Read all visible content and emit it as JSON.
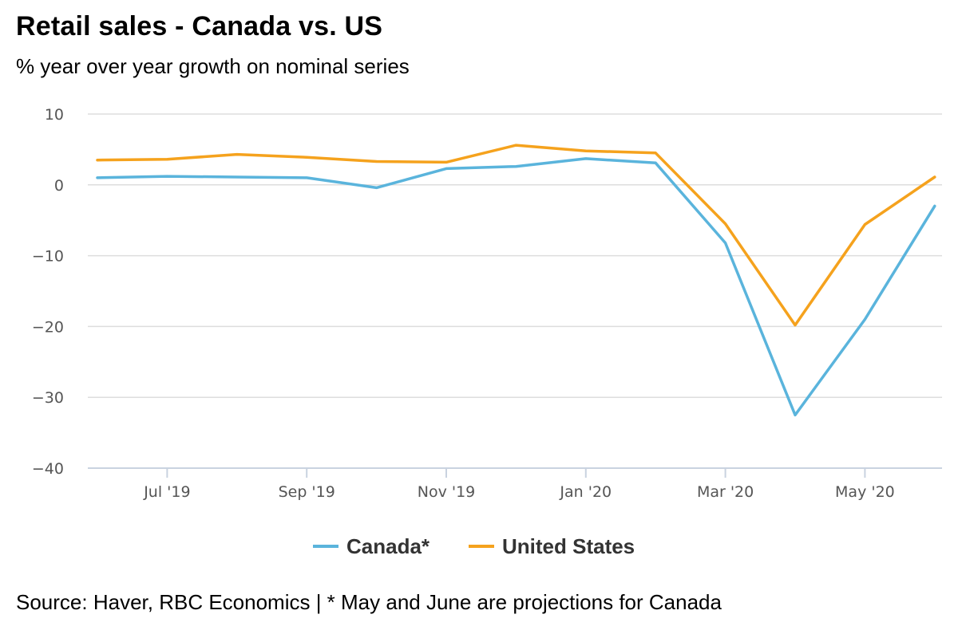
{
  "header": {
    "title": "Retail sales - Canada vs. US",
    "subtitle": "% year over year growth on nominal series"
  },
  "footer": {
    "source": "Source: Haver, RBC Economics | * May and June are projections for Canada"
  },
  "colors": {
    "canada": "#5ab4dc",
    "us": "#f5a21d",
    "grid": "#dddddd",
    "axis": "#c9d3e0"
  },
  "chart_data": {
    "type": "line",
    "title": "Retail sales - Canada vs. US",
    "subtitle": "% year over year growth on nominal series",
    "xlabel": "",
    "ylabel": "",
    "x": [
      "Jun '19",
      "Jul '19",
      "Aug '19",
      "Sep '19",
      "Oct '19",
      "Nov '19",
      "Dec '19",
      "Jan '20",
      "Feb '20",
      "Mar '20",
      "Apr '20",
      "May '20",
      "Jun '20"
    ],
    "x_tick_labels": [
      "Jul '19",
      "Sep '19",
      "Nov '19",
      "Jan '20",
      "Mar '20",
      "May '20"
    ],
    "y_ticks": [
      "10",
      "0",
      "−10",
      "−20",
      "−30",
      "−40"
    ],
    "ylim": [
      -40,
      10
    ],
    "grid": true,
    "legend_position": "bottom-center",
    "series": [
      {
        "name": "Canada*",
        "values": [
          1.0,
          1.2,
          1.1,
          1.0,
          -0.4,
          2.3,
          2.6,
          3.7,
          3.1,
          -8.2,
          -32.5,
          -19.0,
          -3.0
        ]
      },
      {
        "name": "United States",
        "values": [
          3.5,
          3.6,
          4.3,
          3.9,
          3.3,
          3.2,
          5.6,
          4.8,
          4.5,
          -5.5,
          -19.8,
          -5.6,
          1.1
        ]
      }
    ]
  }
}
